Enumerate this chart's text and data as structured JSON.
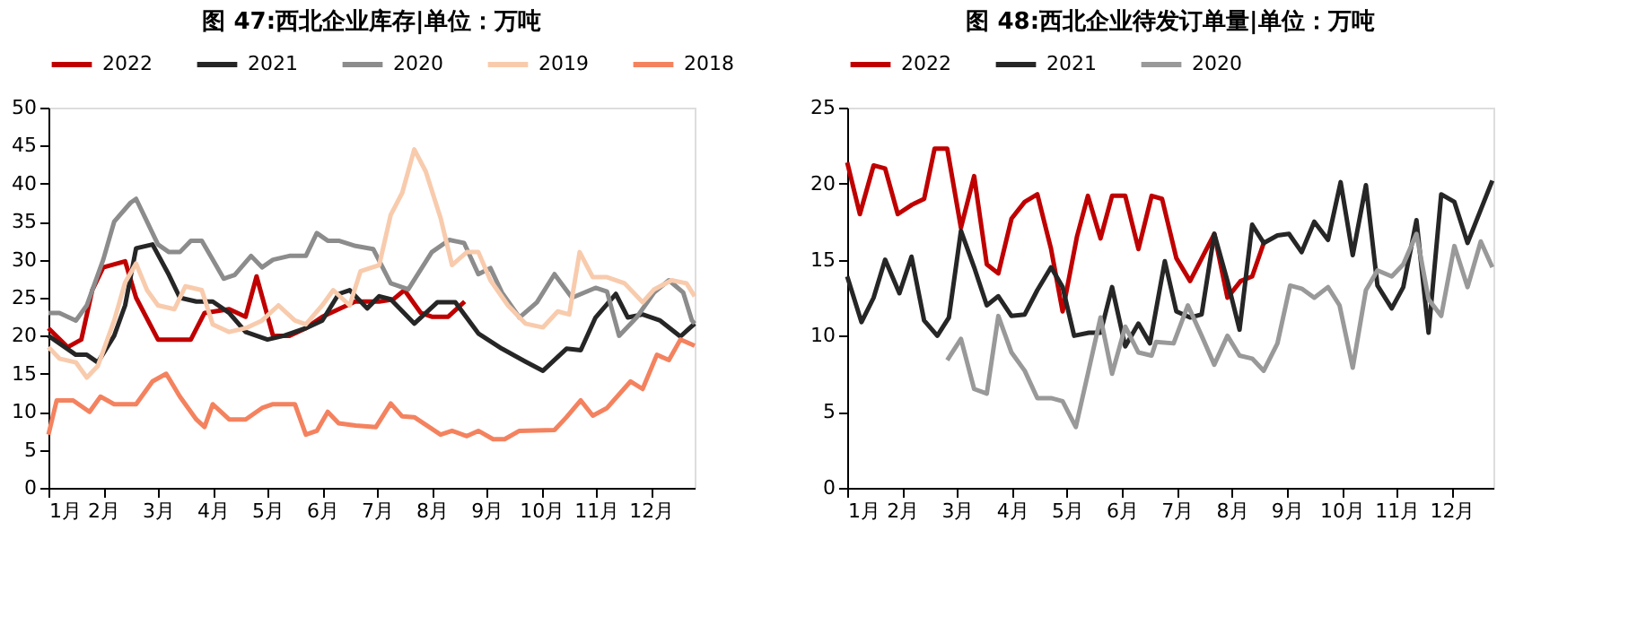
{
  "chart_data": [
    {
      "type": "line",
      "title": "图 47:西北企业库存|单位：万吨",
      "legend": "top",
      "grid": false,
      "marker": "none",
      "line_style": "solid",
      "xlim": [
        1,
        12.8
      ],
      "xticks": [
        {
          "value": 1,
          "label": "1月"
        },
        {
          "value": 2,
          "label": "2月"
        },
        {
          "value": 3,
          "label": "3月"
        },
        {
          "value": 4,
          "label": "4月"
        },
        {
          "value": 5,
          "label": "5月"
        },
        {
          "value": 6,
          "label": "6月"
        },
        {
          "value": 7,
          "label": "7月"
        },
        {
          "value": 8,
          "label": "8月"
        },
        {
          "value": 9,
          "label": "9月"
        },
        {
          "value": 10,
          "label": "10月"
        },
        {
          "value": 11,
          "label": "11月"
        },
        {
          "value": 12,
          "label": "12月"
        }
      ],
      "ylim": [
        0,
        50
      ],
      "yticks": [
        0,
        5,
        10,
        15,
        20,
        25,
        30,
        35,
        40,
        45,
        50
      ],
      "series": [
        {
          "name": "2022",
          "color": "#c00000",
          "x": [
            1.0,
            1.35,
            1.6,
            1.8,
            2.0,
            2.4,
            2.6,
            3.0,
            3.4,
            3.6,
            3.85,
            4.3,
            4.6,
            4.8,
            5.1,
            5.4,
            5.7,
            6.0,
            6.3,
            6.6,
            7.04,
            7.3,
            7.5,
            7.8,
            8.0,
            8.3,
            8.6
          ],
          "values": [
            21,
            18.5,
            19.5,
            26,
            29,
            29.8,
            25,
            19.5,
            19.5,
            19.5,
            23,
            23.5,
            22.5,
            27.8,
            20,
            20,
            21,
            22.5,
            23.5,
            24.5,
            24.5,
            24.8,
            26,
            23,
            22.5,
            22.5,
            24.5
          ]
        },
        {
          "name": "2021",
          "color": "#262626",
          "x": [
            1.0,
            1.3,
            1.5,
            1.7,
            1.9,
            2.2,
            2.4,
            2.6,
            2.9,
            3.2,
            3.4,
            3.7,
            4.0,
            4.3,
            4.6,
            5.0,
            5.3,
            5.7,
            6.0,
            6.3,
            6.5,
            6.82,
            7.04,
            7.25,
            7.68,
            8.1,
            8.43,
            8.85,
            9.28,
            9.71,
            10.03,
            10.46,
            10.72,
            10.99,
            11.36,
            11.58,
            11.85,
            12.17,
            12.54,
            12.8
          ],
          "values": [
            20,
            18.5,
            17.5,
            17.5,
            16.5,
            20,
            24,
            31.5,
            32,
            28,
            25,
            24.5,
            24.5,
            23,
            20.5,
            19.5,
            20,
            21,
            22,
            25.5,
            26,
            23.6,
            25.2,
            24.8,
            21.6,
            24.4,
            24.4,
            20.3,
            18.3,
            16.6,
            15.4,
            18.3,
            18.1,
            22.4,
            25.5,
            22.4,
            22.8,
            22,
            19.9,
            21.6
          ]
        },
        {
          "name": "2020",
          "color": "#8c8c8c",
          "x": [
            1.0,
            1.2,
            1.5,
            1.7,
            2.0,
            2.2,
            2.5,
            2.6,
            2.8,
            3.0,
            3.2,
            3.4,
            3.6,
            3.8,
            4.0,
            4.2,
            4.4,
            4.7,
            4.9,
            5.1,
            5.4,
            5.7,
            5.9,
            6.1,
            6.3,
            6.61,
            6.93,
            7.25,
            7.57,
            8.0,
            8.32,
            8.59,
            8.85,
            9.07,
            9.28,
            9.6,
            9.92,
            10.24,
            10.56,
            10.99,
            11.2,
            11.42,
            11.74,
            12.06,
            12.33,
            12.59,
            12.75,
            12.8
          ],
          "values": [
            23,
            23,
            22,
            24,
            30,
            35,
            37.5,
            38,
            35,
            32,
            31,
            31,
            32.5,
            32.5,
            30,
            27.5,
            28,
            30.5,
            29,
            30,
            30.5,
            30.5,
            33.5,
            32.5,
            32.5,
            31.8,
            31.4,
            26.9,
            26.1,
            31,
            32.6,
            32.2,
            28.1,
            28.9,
            25.7,
            22.4,
            24.4,
            28.1,
            25,
            26.3,
            25.8,
            20,
            22.4,
            25.7,
            27.3,
            25.7,
            22,
            21.6
          ]
        },
        {
          "name": "2019",
          "color": "#f8cbad",
          "x": [
            1.0,
            1.2,
            1.5,
            1.7,
            1.9,
            2.2,
            2.4,
            2.6,
            2.8,
            3.0,
            3.3,
            3.5,
            3.8,
            4.0,
            4.3,
            4.6,
            4.9,
            5.2,
            5.5,
            5.7,
            6.0,
            6.2,
            6.5,
            6.7,
            7.04,
            7.25,
            7.46,
            7.68,
            7.89,
            8.16,
            8.37,
            8.64,
            8.85,
            9.07,
            9.39,
            9.71,
            10.03,
            10.3,
            10.51,
            10.7,
            10.94,
            11.2,
            11.52,
            11.85,
            12.06,
            12.38,
            12.65,
            12.8
          ],
          "values": [
            18.5,
            17,
            16.5,
            14.5,
            16,
            22,
            27,
            29.5,
            26,
            24,
            23.5,
            26.5,
            26,
            21.5,
            20.5,
            21,
            22,
            24,
            22,
            21.5,
            24,
            26,
            24,
            28.5,
            29.3,
            35.9,
            38.8,
            44.5,
            41.6,
            35.5,
            29.3,
            31,
            31,
            27.3,
            24,
            21.6,
            21.1,
            23.2,
            22.8,
            31,
            27.7,
            27.7,
            26.9,
            24.4,
            26.1,
            27.3,
            26.9,
            25.2
          ]
        },
        {
          "name": "2018",
          "color": "#f4825f",
          "x": [
            1.0,
            1.15,
            1.45,
            1.75,
            1.95,
            2.2,
            2.6,
            2.9,
            3.15,
            3.4,
            3.7,
            3.85,
            4.0,
            4.3,
            4.6,
            4.9,
            5.1,
            5.5,
            5.7,
            5.9,
            6.1,
            6.3,
            6.61,
            6.98,
            7.25,
            7.46,
            7.68,
            8.16,
            8.37,
            8.64,
            8.85,
            9.12,
            9.33,
            9.6,
            10.24,
            10.46,
            10.72,
            10.94,
            11.2,
            11.63,
            11.85,
            12.11,
            12.33,
            12.54,
            12.8
          ],
          "values": [
            7,
            11.5,
            11.5,
            10,
            12,
            11,
            11,
            14,
            15,
            12,
            9,
            8,
            11,
            9,
            9,
            10.5,
            11,
            11,
            7,
            7.5,
            10,
            8.5,
            8.2,
            8,
            11.1,
            9.4,
            9.3,
            7,
            7.5,
            6.8,
            7.5,
            6.4,
            6.4,
            7.5,
            7.6,
            9.3,
            11.5,
            9.5,
            10.5,
            14,
            13,
            17.5,
            16.8,
            19.5,
            18.7
          ]
        }
      ]
    },
    {
      "type": "line",
      "title": "图 48:西北企业待发订单量|单位：万吨",
      "legend": "top",
      "grid": false,
      "marker": "none",
      "line_style": "solid",
      "xlim": [
        1,
        12.76
      ],
      "xticks": [
        {
          "value": 1,
          "label": "1月"
        },
        {
          "value": 2,
          "label": "2月"
        },
        {
          "value": 3,
          "label": "3月"
        },
        {
          "value": 4,
          "label": "4月"
        },
        {
          "value": 5,
          "label": "5月"
        },
        {
          "value": 6,
          "label": "6月"
        },
        {
          "value": 7,
          "label": "7月"
        },
        {
          "value": 8,
          "label": "8月"
        },
        {
          "value": 9,
          "label": "9月"
        },
        {
          "value": 10,
          "label": "10月"
        },
        {
          "value": 11,
          "label": "11月"
        },
        {
          "value": 12,
          "label": "12月"
        }
      ],
      "ylim": [
        0,
        25
      ],
      "yticks": [
        0,
        5,
        10,
        15,
        20,
        25
      ],
      "series": [
        {
          "name": "2022",
          "color": "#c00000",
          "x": [
            1.0,
            1.23,
            1.48,
            1.69,
            1.92,
            2.17,
            2.4,
            2.59,
            2.82,
            3.07,
            3.31,
            3.54,
            3.75,
            3.99,
            4.23,
            4.46,
            4.71,
            4.92,
            5.18,
            5.38,
            5.61,
            5.82,
            6.06,
            6.3,
            6.54,
            6.73,
            6.99,
            7.24,
            7.68,
            7.92,
            8.16,
            8.37,
            8.58
          ],
          "values": [
            21.4,
            18,
            21.2,
            21,
            18,
            18.6,
            19,
            22.3,
            22.3,
            17.1,
            20.5,
            14.7,
            14.1,
            17.7,
            18.8,
            19.3,
            15.7,
            11.6,
            16.5,
            19.2,
            16.4,
            19.2,
            19.2,
            15.7,
            19.2,
            19,
            15.1,
            13.6,
            16.7,
            12.5,
            13.6,
            13.9,
            16.1
          ]
        },
        {
          "name": "2021",
          "color": "#262626",
          "x": [
            1.0,
            1.26,
            1.48,
            1.69,
            1.95,
            2.17,
            2.4,
            2.64,
            2.85,
            3.07,
            3.31,
            3.54,
            3.75,
            3.99,
            4.23,
            4.46,
            4.71,
            4.92,
            5.13,
            5.4,
            5.61,
            5.82,
            6.06,
            6.3,
            6.51,
            6.78,
            6.99,
            7.24,
            7.45,
            7.68,
            7.92,
            8.14,
            8.37,
            8.58,
            8.83,
            9.04,
            9.27,
            9.5,
            9.75,
            9.98,
            10.2,
            10.44,
            10.65,
            10.91,
            11.12,
            11.36,
            11.58,
            11.81,
            12.05,
            12.29,
            12.74
          ],
          "values": [
            13.9,
            10.9,
            12.5,
            15,
            12.8,
            15.2,
            11,
            10,
            11.2,
            16.9,
            14.5,
            12,
            12.6,
            11.3,
            11.4,
            13,
            14.5,
            13.2,
            10,
            10.2,
            10.2,
            13.2,
            9.3,
            10.8,
            9.5,
            14.9,
            11.6,
            11.2,
            11.4,
            16.7,
            13.6,
            10.4,
            17.3,
            16.1,
            16.6,
            16.7,
            15.5,
            17.5,
            16.3,
            20.1,
            15.3,
            19.9,
            13.3,
            11.8,
            13.2,
            17.6,
            10.2,
            19.3,
            18.8,
            16.1,
            20.2
          ]
        },
        {
          "name": "2020",
          "color": "#999999",
          "x": [
            2.82,
            3.07,
            3.31,
            3.54,
            3.75,
            3.99,
            4.23,
            4.46,
            4.71,
            4.92,
            5.16,
            5.38,
            5.61,
            5.82,
            6.06,
            6.3,
            6.54,
            6.62,
            6.94,
            7.2,
            7.45,
            7.68,
            7.92,
            8.14,
            8.37,
            8.58,
            8.83,
            9.06,
            9.27,
            9.5,
            9.75,
            9.96,
            10.2,
            10.44,
            10.65,
            10.91,
            11.12,
            11.36,
            11.58,
            11.81,
            12.05,
            12.29,
            12.53,
            12.74
          ],
          "values": [
            8.4,
            9.8,
            6.5,
            6.2,
            11.3,
            8.9,
            7.7,
            5.9,
            5.9,
            5.7,
            4,
            7.5,
            11.2,
            7.5,
            10.6,
            8.9,
            8.7,
            9.6,
            9.5,
            12,
            10,
            8.1,
            10,
            8.7,
            8.5,
            7.7,
            9.5,
            13.3,
            13.1,
            12.5,
            13.2,
            12,
            7.9,
            13,
            14.3,
            13.9,
            14.7,
            16.7,
            12.4,
            11.3,
            15.9,
            13.2,
            16.2,
            14.5
          ]
        }
      ]
    }
  ]
}
